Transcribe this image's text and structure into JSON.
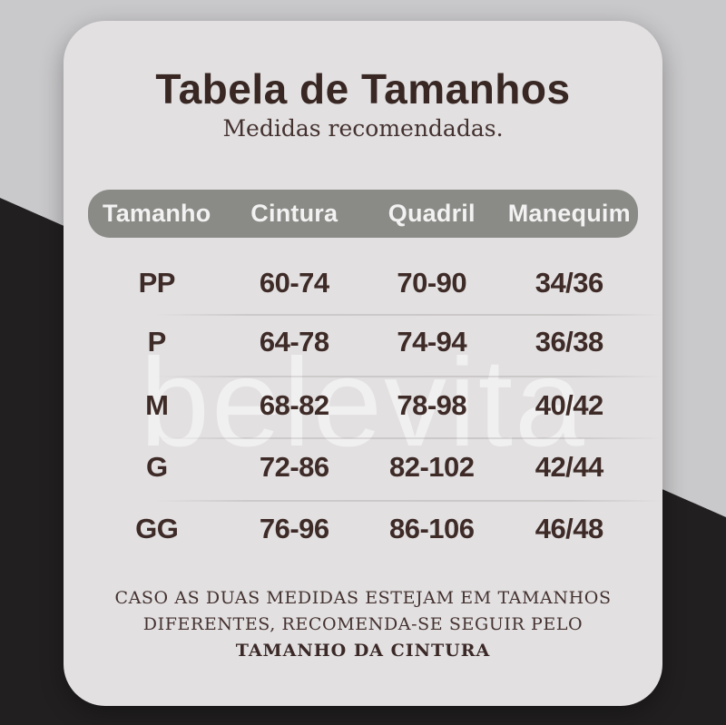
{
  "chart_data": {
    "type": "table",
    "title": "Tabela de Tamanhos",
    "subtitle": "Medidas recomendadas.",
    "columns": [
      "Tamanho",
      "Cintura",
      "Quadril",
      "Manequim"
    ],
    "rows": [
      [
        "PP",
        "60-74",
        "70-90",
        "34/36"
      ],
      [
        "P",
        "64-78",
        "74-94",
        "36/38"
      ],
      [
        "M",
        "68-82",
        "78-98",
        "40/42"
      ],
      [
        "G",
        "72-86",
        "82-102",
        "42/44"
      ],
      [
        "GG",
        "76-96",
        "86-106",
        "46/48"
      ]
    ],
    "watermark": "belevita",
    "note": "CASO AS DUAS MEDIDAS ESTEJAM EM TAMANHOS DIFERENTES, RECOMENDA-SE SEGUIR PELO TAMANHO DA CINTURA"
  },
  "footer": {
    "lines": [
      "CASO AS DUAS MEDIDAS ESTEJAM EM TAMANHOS",
      "DIFERENTES, RECOMENDA-SE SEGUIR PELO",
      "TAMANHO DA CINTURA"
    ]
  },
  "colors": {
    "background": "#c9c8ca",
    "diagonal_black": "#211f20",
    "card": "#e2e0e1",
    "header_bar": "#8a8a86",
    "header_text": "#f3f2f2",
    "text_brown": "#3e2b27",
    "watermark": "rgba(255,255,255,0.50)"
  }
}
